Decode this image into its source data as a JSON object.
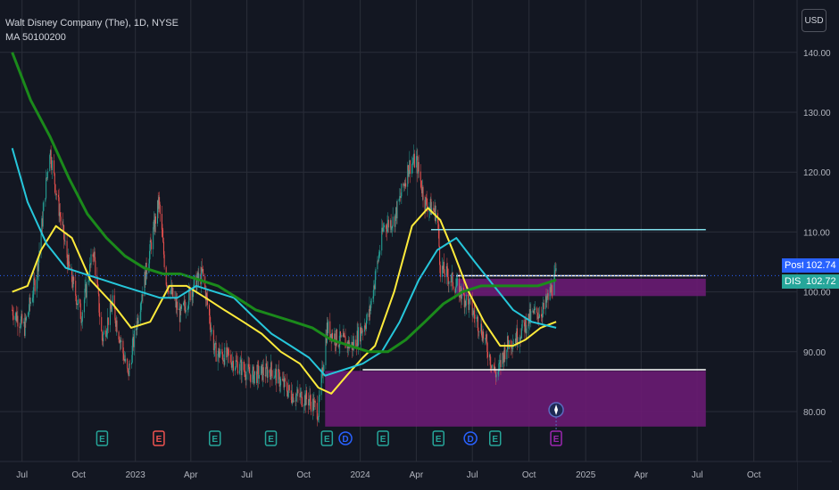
{
  "header": {
    "title": "Walt Disney Company (The), 1D, NYSE",
    "indicator": "MA 50100200",
    "currency_button": "USD"
  },
  "colors": {
    "background": "#131722",
    "grid": "#2a2e39",
    "ma50": "#ffeb3b",
    "ma100": "#26c6da",
    "ma200": "#1b8a1b",
    "zone": "#6a1b73",
    "candle_up": "#26a69a",
    "candle_down": "#ef5350",
    "post_tag": "#2962ff",
    "dis_tag": "#26a69a",
    "earnings_green": "#26a69a",
    "earnings_red": "#ef5350",
    "dividend_blue": "#2962ff"
  },
  "price_tags": {
    "post_label": "Post",
    "post_value": "102.74",
    "dis_label": "DIS",
    "dis_value": "102.72"
  },
  "chart_data": {
    "type": "candlestick",
    "title": "Walt Disney Company (The), 1D, NYSE",
    "y_axis": {
      "ticks": [
        "80.00",
        "90.00",
        "100.00",
        "110.00",
        "120.00",
        "130.00",
        "140.00"
      ],
      "range": [
        75,
        148
      ]
    },
    "x_axis": {
      "ticks": [
        "Jul",
        "Oct",
        "2023",
        "Apr",
        "Jul",
        "Oct",
        "2024",
        "Apr",
        "Jul",
        "Oct",
        "2025",
        "Apr",
        "Jul",
        "Oct"
      ],
      "range": [
        "2022-06",
        "2025-11"
      ]
    },
    "price_path": [
      [
        "2022-06-15",
        97
      ],
      [
        "2022-07-05",
        94
      ],
      [
        "2022-07-25",
        103
      ],
      [
        "2022-08-15",
        124
      ],
      [
        "2022-08-25",
        117
      ],
      [
        "2022-09-15",
        104
      ],
      [
        "2022-10-05",
        96
      ],
      [
        "2022-10-25",
        107
      ],
      [
        "2022-11-08",
        92
      ],
      [
        "2022-11-25",
        98
      ],
      [
        "2022-12-20",
        86
      ],
      [
        "2023-01-05",
        96
      ],
      [
        "2023-02-08",
        115
      ],
      [
        "2023-02-20",
        102
      ],
      [
        "2023-03-15",
        96
      ],
      [
        "2023-04-05",
        101
      ],
      [
        "2023-04-20",
        103
      ],
      [
        "2023-05-10",
        90
      ],
      [
        "2023-06-01",
        89
      ],
      [
        "2023-07-10",
        86
      ],
      [
        "2023-08-10",
        87
      ],
      [
        "2023-09-10",
        83
      ],
      [
        "2023-10-10",
        82
      ],
      [
        "2023-10-25",
        80
      ],
      [
        "2023-11-08",
        94
      ],
      [
        "2023-11-25",
        92
      ],
      [
        "2023-12-20",
        91
      ],
      [
        "2024-01-15",
        96
      ],
      [
        "2024-02-08",
        111
      ],
      [
        "2024-02-25",
        112
      ],
      [
        "2024-03-20",
        121
      ],
      [
        "2024-04-01",
        122
      ],
      [
        "2024-04-15",
        115
      ],
      [
        "2024-05-05",
        113
      ],
      [
        "2024-05-10",
        104
      ],
      [
        "2024-06-05",
        101
      ],
      [
        "2024-06-25",
        98
      ],
      [
        "2024-07-15",
        94
      ],
      [
        "2024-08-05",
        87
      ],
      [
        "2024-08-10",
        86
      ],
      [
        "2024-08-25",
        91
      ],
      [
        "2024-09-15",
        93
      ],
      [
        "2024-10-05",
        96
      ],
      [
        "2024-10-25",
        97
      ],
      [
        "2024-11-14",
        102.72
      ]
    ],
    "series": [
      {
        "name": "MA 50",
        "color": "#ffeb3b",
        "points": [
          [
            "2022-06-15",
            100
          ],
          [
            "2022-07-10",
            101
          ],
          [
            "2022-08-01",
            107
          ],
          [
            "2022-08-25",
            111
          ],
          [
            "2022-09-20",
            109
          ],
          [
            "2022-10-20",
            102
          ],
          [
            "2022-11-25",
            98
          ],
          [
            "2022-12-25",
            94
          ],
          [
            "2023-01-25",
            95
          ],
          [
            "2023-02-25",
            101
          ],
          [
            "2023-03-25",
            101
          ],
          [
            "2023-04-25",
            99
          ],
          [
            "2023-05-25",
            97
          ],
          [
            "2023-06-25",
            95
          ],
          [
            "2023-07-25",
            93
          ],
          [
            "2023-08-25",
            90
          ],
          [
            "2023-09-25",
            88
          ],
          [
            "2023-10-25",
            84
          ],
          [
            "2023-11-15",
            83
          ],
          [
            "2023-12-10",
            86
          ],
          [
            "2024-01-05",
            89
          ],
          [
            "2024-01-25",
            91
          ],
          [
            "2024-02-25",
            100
          ],
          [
            "2024-03-25",
            111
          ],
          [
            "2024-04-20",
            114
          ],
          [
            "2024-05-10",
            112
          ],
          [
            "2024-05-30",
            107
          ],
          [
            "2024-06-25",
            100
          ],
          [
            "2024-07-20",
            95
          ],
          [
            "2024-08-15",
            91
          ],
          [
            "2024-09-05",
            91
          ],
          [
            "2024-09-25",
            92
          ],
          [
            "2024-10-20",
            94
          ],
          [
            "2024-11-14",
            95
          ]
        ]
      },
      {
        "name": "MA 100",
        "color": "#26c6da",
        "points": [
          [
            "2022-06-15",
            124
          ],
          [
            "2022-07-10",
            115
          ],
          [
            "2022-08-10",
            108
          ],
          [
            "2022-09-10",
            104
          ],
          [
            "2022-10-10",
            103
          ],
          [
            "2022-11-10",
            102
          ],
          [
            "2022-12-10",
            101
          ],
          [
            "2023-01-10",
            100
          ],
          [
            "2023-02-10",
            99
          ],
          [
            "2023-03-10",
            99
          ],
          [
            "2023-04-10",
            101
          ],
          [
            "2023-05-10",
            100
          ],
          [
            "2023-06-10",
            99
          ],
          [
            "2023-07-10",
            96
          ],
          [
            "2023-08-10",
            93
          ],
          [
            "2023-09-10",
            91
          ],
          [
            "2023-10-10",
            89
          ],
          [
            "2023-11-05",
            86
          ],
          [
            "2023-12-05",
            87
          ],
          [
            "2024-01-05",
            88
          ],
          [
            "2024-02-05",
            90
          ],
          [
            "2024-03-05",
            95
          ],
          [
            "2024-04-05",
            102
          ],
          [
            "2024-05-05",
            107
          ],
          [
            "2024-06-05",
            109
          ],
          [
            "2024-07-05",
            105
          ],
          [
            "2024-08-05",
            101
          ],
          [
            "2024-09-05",
            97
          ],
          [
            "2024-10-05",
            95
          ],
          [
            "2024-11-14",
            94
          ]
        ]
      },
      {
        "name": "MA 200",
        "color": "#1b8a1b",
        "points": [
          [
            "2022-06-15",
            140
          ],
          [
            "2022-07-15",
            132
          ],
          [
            "2022-08-15",
            126
          ],
          [
            "2022-09-15",
            119
          ],
          [
            "2022-10-15",
            113
          ],
          [
            "2022-11-15",
            109
          ],
          [
            "2022-12-15",
            106
          ],
          [
            "2023-01-15",
            104
          ],
          [
            "2023-02-15",
            103
          ],
          [
            "2023-03-15",
            103
          ],
          [
            "2023-04-15",
            102
          ],
          [
            "2023-05-15",
            101
          ],
          [
            "2023-06-15",
            99
          ],
          [
            "2023-07-15",
            97
          ],
          [
            "2023-08-15",
            96
          ],
          [
            "2023-09-15",
            95
          ],
          [
            "2023-10-15",
            94
          ],
          [
            "2023-11-15",
            92
          ],
          [
            "2023-12-15",
            91
          ],
          [
            "2024-01-15",
            90
          ],
          [
            "2024-02-15",
            90
          ],
          [
            "2024-03-15",
            92
          ],
          [
            "2024-04-15",
            95
          ],
          [
            "2024-05-15",
            98
          ],
          [
            "2024-06-15",
            100
          ],
          [
            "2024-07-15",
            101
          ],
          [
            "2024-08-15",
            101
          ],
          [
            "2024-09-15",
            101
          ],
          [
            "2024-10-15",
            101
          ],
          [
            "2024-11-14",
            102
          ]
        ]
      }
    ],
    "zones": [
      {
        "from": "2023-11-05",
        "to": "2025-07-15",
        "low": 77.5,
        "high": 86.8,
        "color": "#6a1b73"
      },
      {
        "from": "2024-06-05",
        "to": "2025-07-15",
        "low": 99.3,
        "high": 102.2,
        "color": "#6a1b73"
      }
    ],
    "hlines": [
      {
        "from": "2024-04-25",
        "to": "2025-07-15",
        "price": 110.4,
        "color": "#80deea"
      },
      {
        "from": "2024-06-05",
        "to": "2025-07-15",
        "price": 102.7,
        "color": "#ffffff"
      },
      {
        "from": "2024-01-05",
        "to": "2025-07-15",
        "price": 87.0,
        "color": "#ffffff"
      }
    ],
    "last_price": 102.72,
    "events": [
      {
        "date": "2022-11-08",
        "letter": "E",
        "kind": "earnings-up"
      },
      {
        "date": "2023-02-08",
        "letter": "E",
        "kind": "earnings-down"
      },
      {
        "date": "2023-05-10",
        "letter": "E",
        "kind": "earnings-up"
      },
      {
        "date": "2023-08-09",
        "letter": "E",
        "kind": "earnings-up"
      },
      {
        "date": "2023-11-08",
        "letter": "E",
        "kind": "earnings-up"
      },
      {
        "date": "2023-12-08",
        "letter": "D",
        "kind": "dividend"
      },
      {
        "date": "2024-02-07",
        "letter": "E",
        "kind": "earnings-up"
      },
      {
        "date": "2024-05-07",
        "letter": "E",
        "kind": "earnings-up"
      },
      {
        "date": "2024-06-28",
        "letter": "D",
        "kind": "dividend"
      },
      {
        "date": "2024-08-07",
        "letter": "E",
        "kind": "earnings-up"
      },
      {
        "date": "2024-11-14",
        "letter": "E",
        "kind": "earnings-upcoming"
      }
    ]
  }
}
